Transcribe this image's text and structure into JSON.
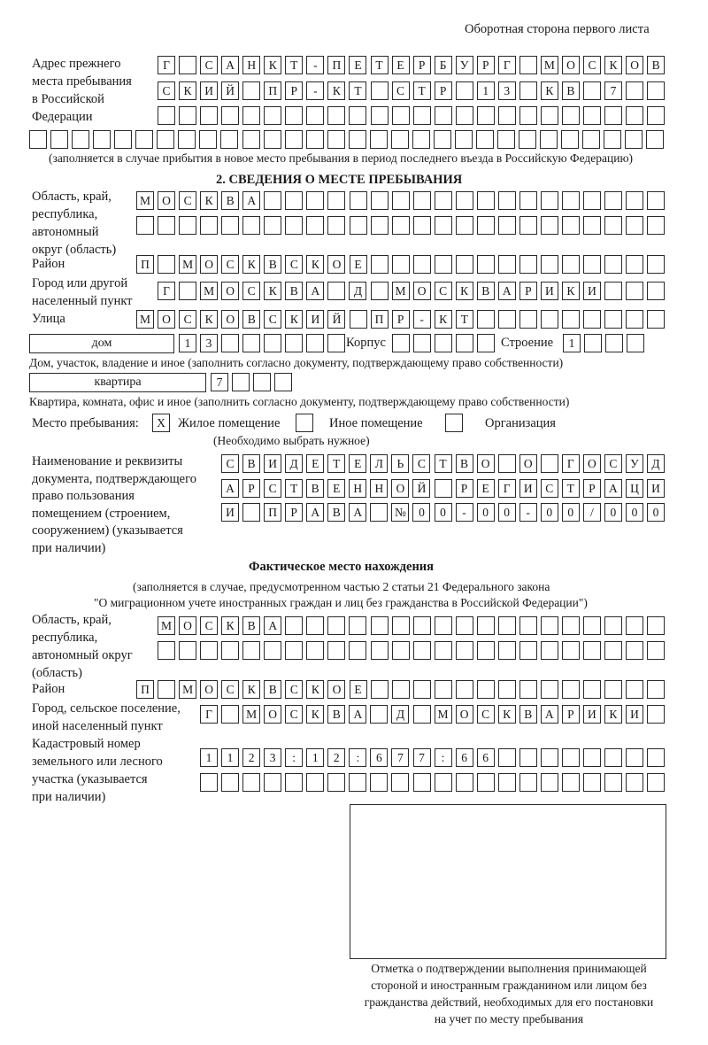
{
  "page_header": "Оборотная сторона первого листа",
  "previous_address": {
    "label": "Адрес прежнего\nместа пребывания\nв Российской\nФедерации",
    "line1": "Г САНКТ-ПЕТЕРБУРГ МОСКОВ",
    "line2": "СКИЙ ПР-КТ СТР 13 КВ 7",
    "line3": "",
    "line4": "",
    "note": "(заполняется в случае прибытия в новое место пребывания в период последнего въезда в Российскую Федерацию)"
  },
  "section2": {
    "heading": "2. СВЕДЕНИЯ О МЕСТЕ ПРЕБЫВАНИЯ",
    "region_label": "Область, край,\nреспублика,\nавтономный\nокруг (область)",
    "region_line1": "МОСКВА",
    "region_line2": "",
    "district_label": "Район",
    "district": "П МОСКВСКОЕ",
    "city_label": "Город или другой\nнаселенный пункт",
    "city": "Г МОСКВА Д МОСКВАРИКИ",
    "street_label": "Улица",
    "street": "МОСКОВСКИЙ ПР-КТ",
    "house_type": "дом",
    "house_number": "13",
    "building_label": "Корпус",
    "building": "",
    "structure_label": "Строение",
    "structure": "1",
    "house_note": "Дом, участок, владение и иное (заполнить согласно документу, подтверждающему право собственности)",
    "apartment_type": "квартира",
    "apartment_number": "7",
    "apartment_note": "Квартира, комната, офис и иное (заполнить согласно документу, подтверждающему право собственности)",
    "stay_place_label": "Место пребывания:",
    "options": [
      {
        "label": "Жилое помещение",
        "mark": "Х",
        "checked": true
      },
      {
        "label": "Иное помещение",
        "mark": "",
        "checked": false
      },
      {
        "label": "Организация",
        "mark": "",
        "checked": false
      }
    ],
    "choose_note": "(Необходимо выбрать нужное)",
    "document_label": "Наименование и реквизиты\nдокумента, подтверждающего\nправо пользования\nпомещением (строением,\nсооружением) (указывается\nпри наличии)",
    "document_line1": "СВИДЕТЕЛЬСТВО О ГОСУД",
    "document_line2": "АРСТВЕННОЙ РЕГИСТРАЦИ",
    "document_line3": "И ПРАВА №00-00-00/000"
  },
  "actual_location": {
    "heading": "Фактическое место нахождения",
    "note_line1": "(заполняется в случае, предусмотренном частью 2 статьи 21 Федерального закона",
    "note_line2": "\"О миграционном учете иностранных граждан и лиц без гражданства в Российской Федерации\")",
    "region_label": "Область, край,\nреспублика,\nавтономный округ\n(область)",
    "region_line1": "МОСКВА",
    "region_line2": "",
    "district_label": "Район",
    "district": "П МОСКВСКОЕ",
    "city_label": "Город, сельское поселение,\nиной населенный пункт",
    "city": "Г МОСКВА Д МОСКВАРИКИ",
    "cadastral_label": "Кадастровый номер\nземельного или лесного\nучастка (указывается\nпри наличии)",
    "cadastral_line1": "1123:12:677:66",
    "cadastral_line2": ""
  },
  "confirmation": {
    "caption": "Отметка о подтверждении выполнения принимающей\nстороной и иностранным гражданином или лицом без\nгражданства действий, необходимых для его постановки\nна учет по месту пребывания"
  }
}
